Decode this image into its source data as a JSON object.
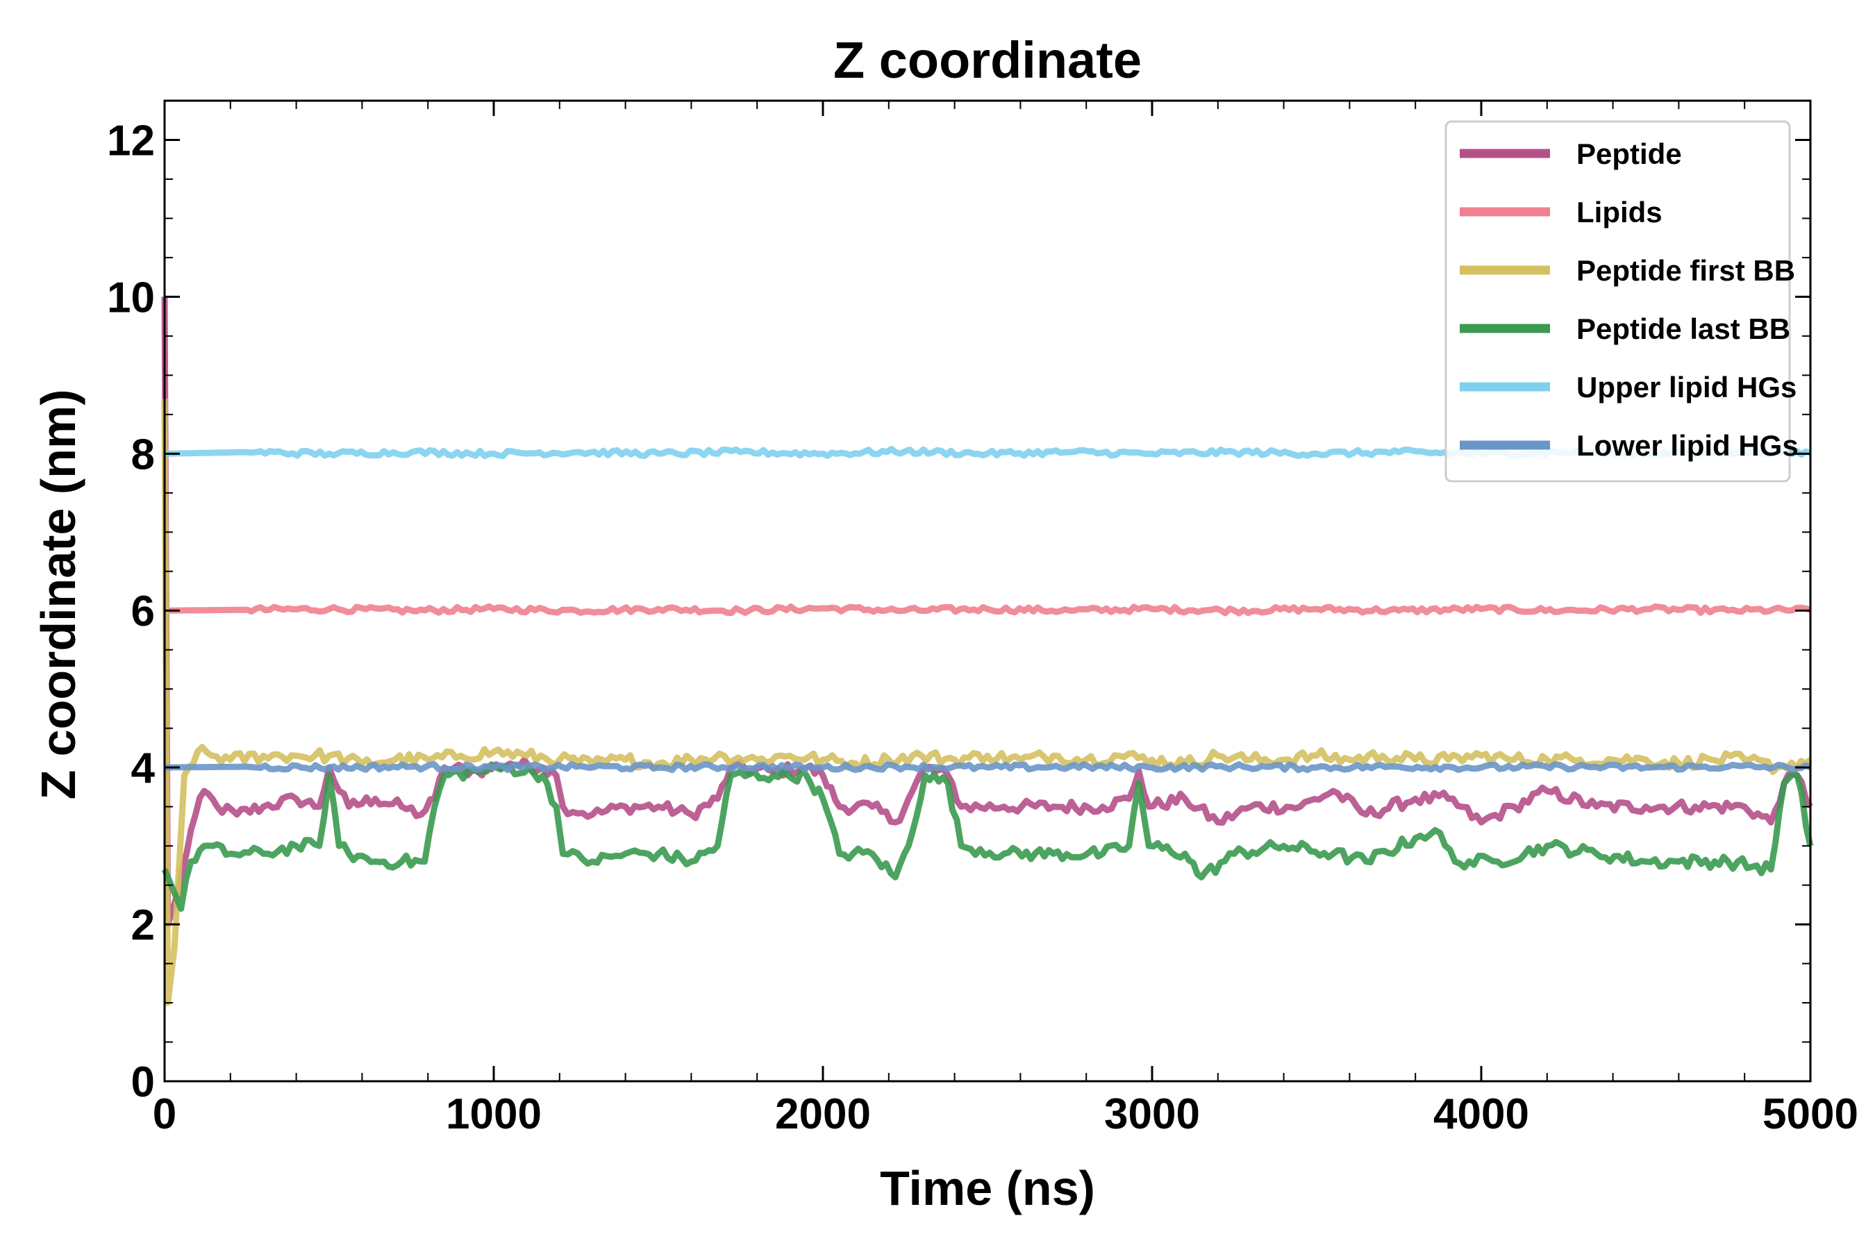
{
  "chart_data": {
    "type": "line",
    "title": "Z coordinate",
    "xlabel": "Time (ns)",
    "ylabel": "Z coordinate (nm)",
    "xlim": [
      0,
      5000
    ],
    "ylim": [
      0,
      12.5
    ],
    "xticks": [
      0,
      1000,
      2000,
      3000,
      4000,
      5000
    ],
    "yticks": [
      0,
      2,
      4,
      6,
      8,
      10,
      12
    ],
    "grid": false,
    "legend_position": "top-right",
    "series": [
      {
        "name": "Peptide",
        "color": "#b5508a",
        "points": [
          [
            0,
            10.0
          ],
          [
            10,
            2.0
          ],
          [
            40,
            2.4
          ],
          [
            80,
            3.2
          ],
          [
            120,
            3.7
          ],
          [
            160,
            3.5
          ],
          [
            220,
            3.4
          ],
          [
            300,
            3.5
          ],
          [
            400,
            3.6
          ],
          [
            470,
            3.5
          ],
          [
            500,
            4.0
          ],
          [
            530,
            3.7
          ],
          [
            560,
            3.5
          ],
          [
            640,
            3.6
          ],
          [
            720,
            3.5
          ],
          [
            780,
            3.4
          ],
          [
            820,
            3.6
          ],
          [
            850,
            4.0
          ],
          [
            950,
            3.95
          ],
          [
            1050,
            4.05
          ],
          [
            1150,
            4.0
          ],
          [
            1190,
            3.9
          ],
          [
            1210,
            3.5
          ],
          [
            1300,
            3.4
          ],
          [
            1400,
            3.5
          ],
          [
            1500,
            3.5
          ],
          [
            1600,
            3.4
          ],
          [
            1680,
            3.6
          ],
          [
            1720,
            4.0
          ],
          [
            1850,
            3.95
          ],
          [
            1950,
            4.0
          ],
          [
            2000,
            3.9
          ],
          [
            2050,
            3.5
          ],
          [
            2150,
            3.5
          ],
          [
            2220,
            3.3
          ],
          [
            2260,
            3.6
          ],
          [
            2310,
            4.0
          ],
          [
            2380,
            3.9
          ],
          [
            2420,
            3.5
          ],
          [
            2550,
            3.5
          ],
          [
            2700,
            3.5
          ],
          [
            2850,
            3.5
          ],
          [
            2930,
            3.6
          ],
          [
            2960,
            3.95
          ],
          [
            2990,
            3.5
          ],
          [
            3100,
            3.6
          ],
          [
            3200,
            3.3
          ],
          [
            3300,
            3.5
          ],
          [
            3450,
            3.5
          ],
          [
            3550,
            3.7
          ],
          [
            3650,
            3.4
          ],
          [
            3800,
            3.6
          ],
          [
            3900,
            3.6
          ],
          [
            4000,
            3.3
          ],
          [
            4100,
            3.5
          ],
          [
            4200,
            3.7
          ],
          [
            4350,
            3.5
          ],
          [
            4500,
            3.5
          ],
          [
            4650,
            3.5
          ],
          [
            4800,
            3.5
          ],
          [
            4880,
            3.3
          ],
          [
            4920,
            3.8
          ],
          [
            4960,
            3.9
          ],
          [
            5000,
            3.5
          ]
        ]
      },
      {
        "name": "Lipids",
        "color": "#f08090",
        "points": [
          [
            0,
            6.0
          ],
          [
            250,
            6.01
          ],
          [
            500,
            6.02
          ],
          [
            750,
            6.0
          ],
          [
            1000,
            6.02
          ],
          [
            1250,
            6.0
          ],
          [
            1500,
            6.02
          ],
          [
            1750,
            6.0
          ],
          [
            2000,
            6.03
          ],
          [
            2250,
            6.0
          ],
          [
            2500,
            6.02
          ],
          [
            2750,
            6.0
          ],
          [
            3000,
            6.02
          ],
          [
            3250,
            6.0
          ],
          [
            3500,
            6.02
          ],
          [
            3750,
            6.0
          ],
          [
            4000,
            6.02
          ],
          [
            4250,
            6.0
          ],
          [
            4500,
            6.02
          ],
          [
            4750,
            6.0
          ],
          [
            5000,
            6.01
          ]
        ]
      },
      {
        "name": "Peptide first BB",
        "color": "#d4c060",
        "points": [
          [
            0,
            8.7
          ],
          [
            10,
            1.0
          ],
          [
            30,
            1.7
          ],
          [
            60,
            3.9
          ],
          [
            100,
            4.2
          ],
          [
            200,
            4.1
          ],
          [
            300,
            4.15
          ],
          [
            400,
            4.15
          ],
          [
            500,
            4.15
          ],
          [
            600,
            4.05
          ],
          [
            700,
            4.1
          ],
          [
            800,
            4.1
          ],
          [
            900,
            4.15
          ],
          [
            1000,
            4.2
          ],
          [
            1100,
            4.15
          ],
          [
            1200,
            4.1
          ],
          [
            1300,
            4.05
          ],
          [
            1400,
            4.1
          ],
          [
            1500,
            4.05
          ],
          [
            1600,
            4.1
          ],
          [
            1700,
            4.15
          ],
          [
            1800,
            4.1
          ],
          [
            1900,
            4.15
          ],
          [
            2000,
            4.1
          ],
          [
            2100,
            4.05
          ],
          [
            2200,
            4.1
          ],
          [
            2300,
            4.15
          ],
          [
            2400,
            4.1
          ],
          [
            2500,
            4.15
          ],
          [
            2600,
            4.1
          ],
          [
            2700,
            4.15
          ],
          [
            2800,
            4.1
          ],
          [
            2900,
            4.15
          ],
          [
            3000,
            4.1
          ],
          [
            3100,
            4.05
          ],
          [
            3200,
            4.15
          ],
          [
            3300,
            4.1
          ],
          [
            3400,
            4.1
          ],
          [
            3500,
            4.15
          ],
          [
            3600,
            4.1
          ],
          [
            3700,
            4.15
          ],
          [
            3800,
            4.1
          ],
          [
            3900,
            4.1
          ],
          [
            4000,
            4.15
          ],
          [
            4100,
            4.1
          ],
          [
            4200,
            4.1
          ],
          [
            4300,
            4.1
          ],
          [
            4400,
            4.1
          ],
          [
            4500,
            4.1
          ],
          [
            4600,
            4.05
          ],
          [
            4700,
            4.1
          ],
          [
            4800,
            4.1
          ],
          [
            4900,
            4.0
          ],
          [
            5000,
            4.1
          ]
        ]
      },
      {
        "name": "Peptide last BB",
        "color": "#3a9a4f",
        "points": [
          [
            0,
            2.7
          ],
          [
            20,
            2.5
          ],
          [
            50,
            2.2
          ],
          [
            80,
            2.8
          ],
          [
            120,
            3.0
          ],
          [
            200,
            2.9
          ],
          [
            300,
            2.9
          ],
          [
            400,
            3.0
          ],
          [
            470,
            3.0
          ],
          [
            500,
            3.9
          ],
          [
            530,
            3.0
          ],
          [
            560,
            2.9
          ],
          [
            640,
            2.8
          ],
          [
            720,
            2.8
          ],
          [
            790,
            2.8
          ],
          [
            820,
            3.5
          ],
          [
            850,
            3.9
          ],
          [
            950,
            3.95
          ],
          [
            1050,
            4.0
          ],
          [
            1150,
            3.9
          ],
          [
            1190,
            3.5
          ],
          [
            1210,
            2.9
          ],
          [
            1300,
            2.8
          ],
          [
            1400,
            2.9
          ],
          [
            1500,
            2.9
          ],
          [
            1600,
            2.8
          ],
          [
            1680,
            3.0
          ],
          [
            1720,
            3.9
          ],
          [
            1850,
            3.9
          ],
          [
            1950,
            3.9
          ],
          [
            2000,
            3.6
          ],
          [
            2050,
            2.9
          ],
          [
            2150,
            2.9
          ],
          [
            2220,
            2.6
          ],
          [
            2260,
            3.0
          ],
          [
            2310,
            3.9
          ],
          [
            2380,
            3.8
          ],
          [
            2420,
            3.0
          ],
          [
            2550,
            2.9
          ],
          [
            2700,
            2.9
          ],
          [
            2850,
            2.9
          ],
          [
            2930,
            3.0
          ],
          [
            2960,
            3.8
          ],
          [
            2990,
            3.0
          ],
          [
            3100,
            2.9
          ],
          [
            3150,
            2.6
          ],
          [
            3250,
            2.9
          ],
          [
            3400,
            3.0
          ],
          [
            3550,
            2.9
          ],
          [
            3650,
            2.8
          ],
          [
            3800,
            3.1
          ],
          [
            3860,
            3.2
          ],
          [
            3920,
            2.8
          ],
          [
            4050,
            2.8
          ],
          [
            4200,
            3.0
          ],
          [
            4350,
            2.9
          ],
          [
            4500,
            2.8
          ],
          [
            4600,
            2.8
          ],
          [
            4750,
            2.8
          ],
          [
            4880,
            2.7
          ],
          [
            4920,
            3.8
          ],
          [
            4960,
            3.9
          ],
          [
            5000,
            3.0
          ]
        ]
      },
      {
        "name": "Upper lipid HGs",
        "color": "#7fd0ee",
        "points": [
          [
            0,
            8.0
          ],
          [
            250,
            8.02
          ],
          [
            500,
            8.0
          ],
          [
            750,
            8.02
          ],
          [
            1000,
            8.0
          ],
          [
            1250,
            8.02
          ],
          [
            1500,
            8.0
          ],
          [
            1750,
            8.02
          ],
          [
            2000,
            8.0
          ],
          [
            2250,
            8.03
          ],
          [
            2500,
            8.0
          ],
          [
            2750,
            8.02
          ],
          [
            3000,
            8.0
          ],
          [
            3250,
            8.02
          ],
          [
            3500,
            8.0
          ],
          [
            3750,
            8.02
          ],
          [
            4000,
            8.0
          ],
          [
            4250,
            8.02
          ],
          [
            4500,
            8.0
          ],
          [
            4750,
            8.02
          ],
          [
            5000,
            8.01
          ]
        ]
      },
      {
        "name": "Lower lipid HGs",
        "color": "#6a96c8",
        "points": [
          [
            0,
            4.0
          ],
          [
            250,
            4.01
          ],
          [
            500,
            4.0
          ],
          [
            750,
            4.01
          ],
          [
            1000,
            4.0
          ],
          [
            1250,
            4.01
          ],
          [
            1500,
            4.0
          ],
          [
            1750,
            4.01
          ],
          [
            2000,
            4.0
          ],
          [
            2250,
            4.01
          ],
          [
            2500,
            4.0
          ],
          [
            2750,
            4.01
          ],
          [
            3000,
            4.0
          ],
          [
            3250,
            4.01
          ],
          [
            3500,
            4.0
          ],
          [
            3750,
            4.01
          ],
          [
            4000,
            4.0
          ],
          [
            4250,
            4.01
          ],
          [
            4500,
            4.0
          ],
          [
            4750,
            4.01
          ],
          [
            5000,
            4.0
          ]
        ]
      }
    ]
  }
}
